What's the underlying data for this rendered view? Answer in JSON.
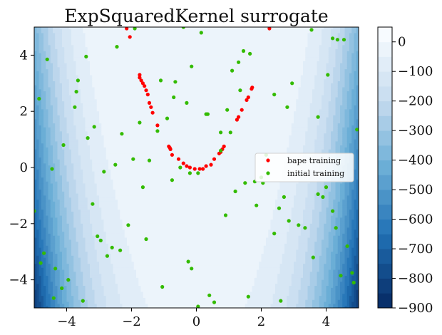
{
  "chart_data": {
    "type": "scatter",
    "title": "ExpSquaredKernel surrogate",
    "xlabel": "",
    "ylabel": "",
    "xlim": [
      -5,
      5
    ],
    "ylim": [
      -5,
      5
    ],
    "x_ticks": [
      -4,
      -2,
      0,
      2,
      4
    ],
    "x_tick_labels": [
      "−4",
      "−2",
      "0",
      "2",
      "4"
    ],
    "y_ticks": [
      -4,
      -2,
      0,
      2,
      4
    ],
    "y_tick_labels": [
      "−4",
      "−2",
      "0",
      "2",
      "4"
    ],
    "grid": false,
    "legend_position": "center-right",
    "background": {
      "type": "filled-contour",
      "colormap": "Blues_r",
      "contour_levels": [
        -900,
        -850,
        -800,
        -750,
        -700,
        -650,
        -600,
        -550,
        -500,
        -450,
        -400,
        -350,
        -300,
        -250,
        -200,
        -150,
        -100,
        -50,
        0,
        50
      ],
      "model": "−(x² − y)² estimate"
    },
    "colorbar": {
      "ticks": [
        0,
        -100,
        -200,
        -300,
        -400,
        -500,
        -600,
        -700,
        -800,
        -900
      ],
      "tick_labels": [
        "0",
        "−100",
        "−200",
        "−300",
        "−400",
        "−500",
        "−600",
        "−700",
        "−800",
        "−900"
      ],
      "range": [
        -900,
        50
      ]
    },
    "series": [
      {
        "name": "bape training",
        "color": "#ff0000",
        "points": [
          [
            -2.15,
            4.95
          ],
          [
            -2.05,
            4.65
          ],
          [
            -1.75,
            3.3
          ],
          [
            -1.75,
            3.2
          ],
          [
            -1.7,
            3.1
          ],
          [
            -1.65,
            3.0
          ],
          [
            -1.6,
            2.9
          ],
          [
            -1.55,
            2.75
          ],
          [
            -1.5,
            2.6
          ],
          [
            -1.45,
            2.3
          ],
          [
            -1.4,
            2.15
          ],
          [
            -1.35,
            1.95
          ],
          [
            -1.2,
            1.5
          ],
          [
            -0.85,
            0.75
          ],
          [
            -0.82,
            0.7
          ],
          [
            -0.8,
            0.65
          ],
          [
            -0.75,
            0.45
          ],
          [
            -0.55,
            0.3
          ],
          [
            -0.4,
            0.15
          ],
          [
            -0.3,
            0.05
          ],
          [
            -0.2,
            0.0
          ],
          [
            -0.05,
            -0.05
          ],
          [
            0.1,
            -0.05
          ],
          [
            0.2,
            -0.05
          ],
          [
            0.3,
            0.05
          ],
          [
            0.45,
            0.1
          ],
          [
            0.55,
            0.3
          ],
          [
            0.7,
            0.5
          ],
          [
            0.75,
            0.55
          ],
          [
            0.8,
            0.65
          ],
          [
            0.85,
            0.75
          ],
          [
            1.25,
            1.7
          ],
          [
            1.3,
            1.8
          ],
          [
            1.4,
            2.05
          ],
          [
            1.55,
            2.4
          ],
          [
            1.6,
            2.5
          ],
          [
            1.7,
            2.8
          ],
          [
            1.72,
            2.85
          ],
          [
            2.25,
            4.95
          ]
        ]
      },
      {
        "name": "initial training",
        "color": "#33bb00",
        "points": [
          [
            -4.85,
            2.45
          ],
          [
            -4.8,
            -3.4
          ],
          [
            -4.7,
            -3.05
          ],
          [
            -4.6,
            3.85
          ],
          [
            -4.45,
            -0.05
          ],
          [
            -4.4,
            -4.65
          ],
          [
            -4.35,
            -3.6
          ],
          [
            -4.15,
            -4.3
          ],
          [
            -4.1,
            0.8
          ],
          [
            -3.95,
            -4.0
          ],
          [
            -3.75,
            2.15
          ],
          [
            -3.7,
            2.7
          ],
          [
            -3.65,
            3.1
          ],
          [
            -3.5,
            -4.75
          ],
          [
            -3.4,
            3.95
          ],
          [
            -3.35,
            1.05
          ],
          [
            -3.2,
            -1.3
          ],
          [
            -3.15,
            1.45
          ],
          [
            -3.05,
            -2.45
          ],
          [
            -2.95,
            -2.6
          ],
          [
            -2.85,
            -0.15
          ],
          [
            -2.75,
            -3.15
          ],
          [
            -2.6,
            -2.85
          ],
          [
            -2.5,
            0.1
          ],
          [
            -2.45,
            4.3
          ],
          [
            -2.35,
            -2.95
          ],
          [
            -2.3,
            1.2
          ],
          [
            -2.1,
            -2.05
          ],
          [
            -1.95,
            0.3
          ],
          [
            -1.9,
            4.95
          ],
          [
            -1.75,
            1.6
          ],
          [
            -1.65,
            -0.7
          ],
          [
            -1.55,
            -2.55
          ],
          [
            -1.45,
            0.25
          ],
          [
            -1.2,
            1.3
          ],
          [
            -1.1,
            3.1
          ],
          [
            -1.05,
            -4.25
          ],
          [
            -0.9,
            1.75
          ],
          [
            -0.75,
            -0.45
          ],
          [
            -0.7,
            2.5
          ],
          [
            -0.65,
            3.05
          ],
          [
            -0.5,
            0.0
          ],
          [
            -0.4,
            5.0
          ],
          [
            -0.3,
            2.3
          ],
          [
            -0.25,
            -3.35
          ],
          [
            -0.2,
            -0.2
          ],
          [
            -0.15,
            -3.6
          ],
          [
            -0.15,
            3.6
          ],
          [
            0.05,
            -0.2
          ],
          [
            0.05,
            -4.95
          ],
          [
            0.15,
            4.8
          ],
          [
            0.3,
            1.9
          ],
          [
            0.35,
            1.9
          ],
          [
            0.4,
            -4.55
          ],
          [
            0.55,
            -4.8
          ],
          [
            0.75,
            1.25
          ],
          [
            0.75,
            0.6
          ],
          [
            0.9,
            -1.7
          ],
          [
            0.95,
            2.05
          ],
          [
            1.05,
            1.25
          ],
          [
            1.1,
            3.45
          ],
          [
            1.2,
            -0.85
          ],
          [
            1.3,
            3.75
          ],
          [
            1.35,
            2.75
          ],
          [
            1.45,
            4.15
          ],
          [
            1.5,
            -0.55
          ],
          [
            1.6,
            -4.6
          ],
          [
            1.65,
            4.05
          ],
          [
            1.8,
            -0.5
          ],
          [
            1.85,
            -1.35
          ],
          [
            2.0,
            -0.35
          ],
          [
            2.05,
            -0.55
          ],
          [
            2.15,
            0.45
          ],
          [
            2.4,
            2.6
          ],
          [
            2.4,
            -2.35
          ],
          [
            2.55,
            -1.45
          ],
          [
            2.6,
            -4.75
          ],
          [
            2.7,
            -1.05
          ],
          [
            2.8,
            2.15
          ],
          [
            2.85,
            -1.9
          ],
          [
            2.95,
            3.0
          ],
          [
            3.15,
            -2.05
          ],
          [
            3.35,
            -2.15
          ],
          [
            3.55,
            4.9
          ],
          [
            3.6,
            -3.2
          ],
          [
            3.75,
            1.8
          ],
          [
            3.75,
            -0.95
          ],
          [
            3.9,
            -1.05
          ],
          [
            4.0,
            -0.7
          ],
          [
            4.05,
            3.3
          ],
          [
            4.2,
            4.6
          ],
          [
            4.2,
            -1.55
          ],
          [
            4.3,
            -2.15
          ],
          [
            4.35,
            4.55
          ],
          [
            4.45,
            -3.85
          ],
          [
            4.55,
            4.55
          ],
          [
            4.65,
            -2.8
          ],
          [
            4.8,
            -3.75
          ],
          [
            4.85,
            -4.1
          ],
          [
            4.95,
            1.35
          ],
          [
            -5.0,
            -1.55
          ]
        ]
      }
    ]
  }
}
